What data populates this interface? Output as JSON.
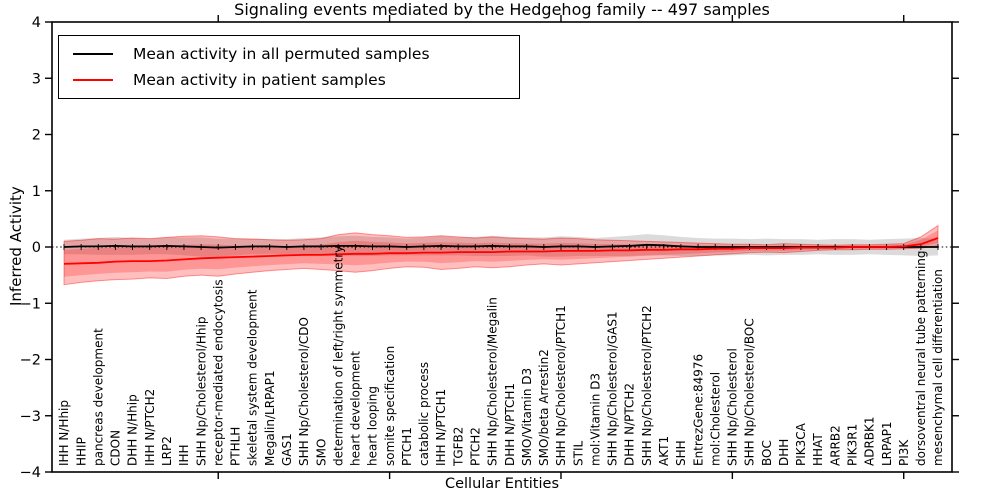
{
  "chart_data": {
    "type": "line",
    "title": "Signaling events mediated by the Hedgehog family -- 497 samples",
    "xlabel": "Cellular Entities",
    "ylabel": "Inferred Activity",
    "ylim": [
      -4,
      4
    ],
    "yticks": [
      4,
      3,
      2,
      1,
      0,
      -1,
      -2,
      -3,
      -4
    ],
    "grid": false,
    "zero_line": {
      "y": 0,
      "style": "dotted",
      "comb_ticks": true
    },
    "legend_position": "upper left",
    "legend_items": [
      {
        "label": "Mean activity in all permuted samples",
        "color": "#000000"
      },
      {
        "label": "Mean activity in patient samples",
        "color": "#ff0000"
      }
    ],
    "x_major_tick_indices": [
      9,
      19,
      29,
      39,
      49
    ],
    "categories": [
      "IHH N/Hhip",
      "HHIP",
      "pancreas development",
      "CDON",
      "DHH N/Hhip",
      "IHH N/PTCH2",
      "LRP2",
      "IHH",
      "SHH Np/Cholesterol/Hhip",
      "receptor-mediated endocytosis",
      "PTHLH",
      "skeletal system development",
      "Megalin/LRPAP1",
      "GAS1",
      "SHH Np/Cholesterol/CDO",
      "SMO",
      "determination of left/right symmetry",
      "heart development",
      "heart looping",
      "somite specification",
      "PTCH1",
      "catabolic process",
      "IHH N/PTCH1",
      "TGFB2",
      "PTCH2",
      "SHH Np/Cholesterol/Megalin",
      "DHH N/PTCH1",
      "SMO/Vitamin D3",
      "SMO/beta Arrestin2",
      "SHH Np/Cholesterol/PTCH1",
      "STIL",
      "mol:Vitamin D3",
      "SHH Np/Cholesterol/GAS1",
      "DHH N/PTCH2",
      "SHH Np/Cholesterol/PTCH2",
      "AKT1",
      "SHH",
      "EntrezGene:84976",
      "mol:Cholesterol",
      "SHH Np/Cholesterol",
      "SHH Np/Cholesterol/BOC",
      "BOC",
      "DHH",
      "PIK3CA",
      "HHAT",
      "ARRB2",
      "PIK3R1",
      "ADRBK1",
      "LRPAP1",
      "PI3K",
      "dorsoventral neural tube patterning",
      "mesenchymal cell differentiation"
    ],
    "series": [
      {
        "name": "Mean activity in all permuted samples",
        "color": "#000000",
        "width": 1.8,
        "values": [
          0,
          0.01,
          0.01,
          0.02,
          0.01,
          0.01,
          0.02,
          0.01,
          0,
          -0.01,
          0,
          0.01,
          0.01,
          0,
          0.01,
          0.01,
          0.02,
          0.02,
          0.01,
          0.01,
          0,
          0.01,
          0.02,
          0.01,
          0.01,
          0.02,
          0.01,
          0.01,
          0,
          0.01,
          0.01,
          0,
          0.01,
          0.02,
          0.04,
          0.03,
          0.01,
          0,
          0,
          0,
          0,
          0,
          0,
          0,
          0,
          0,
          0,
          0,
          0,
          0,
          0,
          0
        ]
      },
      {
        "name": "Mean activity in patient samples",
        "color": "#ff0000",
        "width": 1.8,
        "values": [
          -0.3,
          -0.29,
          -0.28,
          -0.26,
          -0.25,
          -0.25,
          -0.24,
          -0.22,
          -0.2,
          -0.19,
          -0.18,
          -0.17,
          -0.16,
          -0.15,
          -0.14,
          -0.14,
          -0.13,
          -0.12,
          -0.12,
          -0.11,
          -0.11,
          -0.1,
          -0.1,
          -0.09,
          -0.09,
          -0.09,
          -0.08,
          -0.08,
          -0.08,
          -0.07,
          -0.07,
          -0.07,
          -0.06,
          -0.06,
          -0.05,
          -0.05,
          -0.04,
          -0.04,
          -0.03,
          -0.03,
          -0.02,
          -0.02,
          -0.02,
          -0.01,
          -0.01,
          -0.01,
          0.0,
          0.0,
          0.0,
          0.01,
          0.05,
          0.16
        ]
      }
    ],
    "bands": [
      {
        "name": "permuted-std-band",
        "color": "#000000",
        "fill_opacity": 0.14,
        "upper": [
          0.13,
          0.15,
          0.16,
          0.18,
          0.16,
          0.15,
          0.17,
          0.17,
          0.17,
          0.15,
          0.15,
          0.15,
          0.14,
          0.14,
          0.16,
          0.17,
          0.19,
          0.2,
          0.18,
          0.17,
          0.15,
          0.17,
          0.19,
          0.17,
          0.18,
          0.2,
          0.18,
          0.17,
          0.17,
          0.19,
          0.18,
          0.16,
          0.18,
          0.2,
          0.23,
          0.21,
          0.18,
          0.16,
          0.15,
          0.15,
          0.14,
          0.15,
          0.14,
          0.14,
          0.13,
          0.14,
          0.14,
          0.13,
          0.14,
          0.15,
          0.16,
          0.15
        ],
        "lower": [
          -0.13,
          -0.13,
          -0.14,
          -0.14,
          -0.14,
          -0.13,
          -0.13,
          -0.15,
          -0.17,
          -0.17,
          -0.15,
          -0.13,
          -0.12,
          -0.14,
          -0.14,
          -0.15,
          -0.15,
          -0.16,
          -0.16,
          -0.15,
          -0.15,
          -0.15,
          -0.15,
          -0.15,
          -0.16,
          -0.16,
          -0.16,
          -0.15,
          -0.17,
          -0.17,
          -0.16,
          -0.16,
          -0.16,
          -0.16,
          -0.15,
          -0.15,
          -0.16,
          -0.16,
          -0.15,
          -0.15,
          -0.14,
          -0.15,
          -0.14,
          -0.14,
          -0.13,
          -0.14,
          -0.14,
          -0.13,
          -0.14,
          -0.15,
          -0.16,
          -0.15
        ]
      },
      {
        "name": "patient-std-band",
        "color": "#ff0000",
        "fill_opacity": 0.25,
        "stroke_opacity": 0.4,
        "mean_series": 1,
        "inner_scale": 0.62,
        "upper": [
          0.1,
          0.12,
          0.15,
          0.14,
          0.16,
          0.15,
          0.17,
          0.19,
          0.2,
          0.18,
          0.15,
          0.14,
          0.13,
          0.12,
          0.13,
          0.15,
          0.22,
          0.25,
          0.22,
          0.2,
          0.17,
          0.18,
          0.2,
          0.18,
          0.16,
          0.18,
          0.16,
          0.15,
          0.14,
          0.16,
          0.15,
          0.13,
          0.12,
          0.11,
          0.1,
          0.09,
          0.08,
          0.07,
          0.06,
          0.05,
          0.05,
          0.04,
          0.06,
          0.05,
          0.04,
          0.03,
          0.04,
          0.04,
          0.05,
          0.06,
          0.18,
          0.38
        ],
        "lower": [
          -0.67,
          -0.63,
          -0.6,
          -0.58,
          -0.57,
          -0.55,
          -0.56,
          -0.52,
          -0.5,
          -0.52,
          -0.48,
          -0.45,
          -0.42,
          -0.4,
          -0.38,
          -0.4,
          -0.42,
          -0.45,
          -0.42,
          -0.38,
          -0.35,
          -0.36,
          -0.4,
          -0.38,
          -0.35,
          -0.37,
          -0.35,
          -0.32,
          -0.3,
          -0.32,
          -0.3,
          -0.28,
          -0.26,
          -0.24,
          -0.22,
          -0.2,
          -0.18,
          -0.16,
          -0.14,
          -0.12,
          -0.1,
          -0.09,
          -0.1,
          -0.08,
          -0.06,
          -0.05,
          -0.05,
          -0.04,
          -0.04,
          -0.03,
          -0.02,
          0.02
        ]
      }
    ]
  }
}
